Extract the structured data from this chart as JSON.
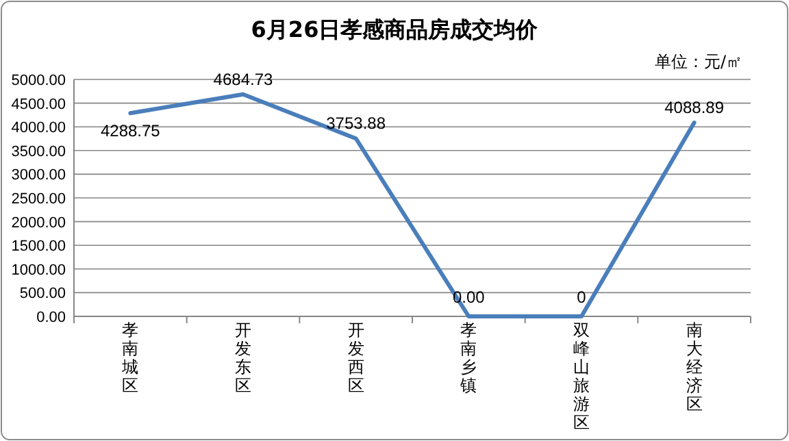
{
  "chart_data": {
    "type": "line",
    "title": "6月26日孝感商品房成交均价",
    "annotations": [
      "单位：元/㎡"
    ],
    "categories": [
      "孝南城区",
      "开发东区",
      "开发西区",
      "孝南乡镇",
      "双峰山旅游区",
      "南大经济区"
    ],
    "series": [
      {
        "color": "#4a7ebb",
        "values": [
          4288.75,
          4684.73,
          3753.88,
          0.0,
          0,
          4088.89
        ],
        "value_labels": [
          "4288.75",
          "4684.73",
          "3753.88",
          "0.00",
          "0",
          "4088.89"
        ]
      }
    ],
    "ylim": [
      0,
      5000
    ],
    "yticks": [
      {
        "value": 0,
        "label": "0.00"
      },
      {
        "value": 500,
        "label": "500.00"
      },
      {
        "value": 1000,
        "label": "1000.00"
      },
      {
        "value": 1500,
        "label": "1500.00"
      },
      {
        "value": 2000,
        "label": "2000.00"
      },
      {
        "value": 2500,
        "label": "2500.00"
      },
      {
        "value": 3000,
        "label": "3000.00"
      },
      {
        "value": 3500,
        "label": "3500.00"
      },
      {
        "value": 4000,
        "label": "4000.00"
      },
      {
        "value": 4500,
        "label": "4500.00"
      },
      {
        "value": 5000,
        "label": "5000.00"
      }
    ],
    "grid": "y",
    "marker": "none",
    "line_style": "solid"
  }
}
